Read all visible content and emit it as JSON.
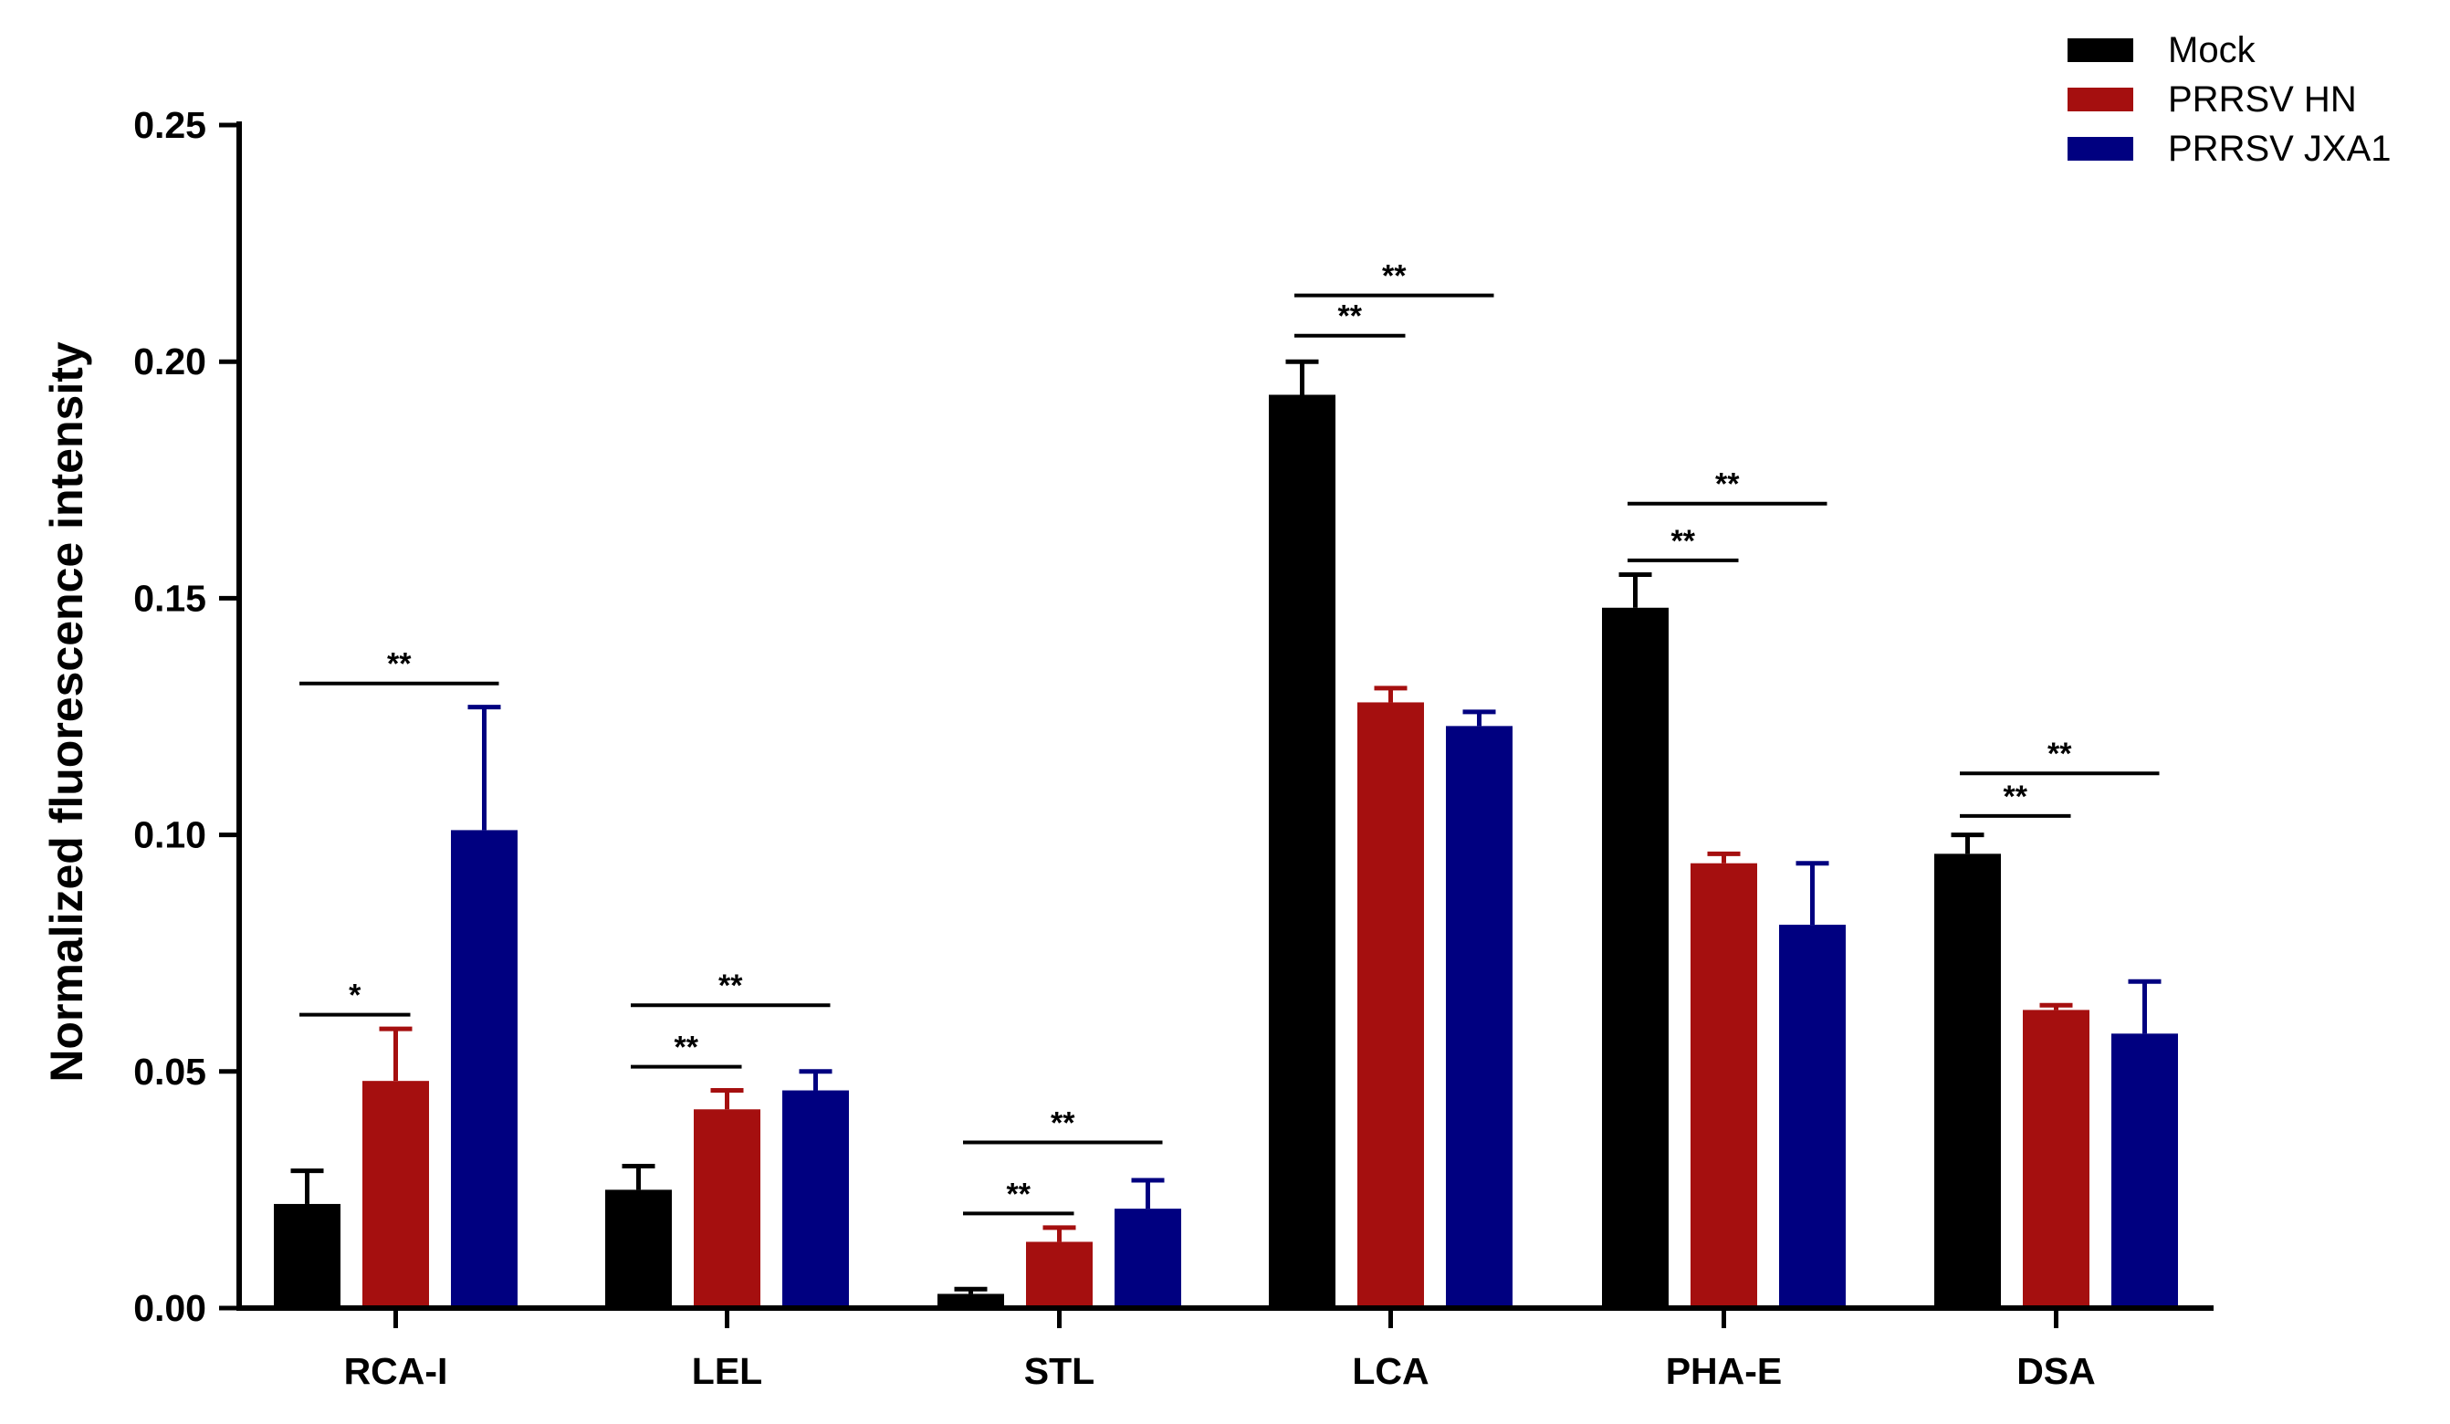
{
  "chart_data": {
    "type": "bar",
    "title": "",
    "xlabel": "",
    "ylabel": "Normalized fluorescence intensity",
    "ylim": [
      0,
      0.25
    ],
    "yticks": [
      "0.00",
      "0.05",
      "0.10",
      "0.15",
      "0.20",
      "0.25"
    ],
    "ytick_values": [
      0,
      0.05,
      0.1,
      0.15,
      0.2,
      0.25
    ],
    "grid": false,
    "legend_position": "top-right",
    "categories": [
      "RCA-I",
      "LEL",
      "STL",
      "LCA",
      "PHA-E",
      "DSA"
    ],
    "series": [
      {
        "name": "Mock",
        "color": "#000000",
        "values": [
          0.022,
          0.025,
          0.003,
          0.193,
          0.148,
          0.096
        ],
        "errors": [
          0.007,
          0.005,
          0.001,
          0.007,
          0.007,
          0.004
        ]
      },
      {
        "name": "PRRSV HN",
        "color": "#a50f0f",
        "values": [
          0.048,
          0.042,
          0.014,
          0.128,
          0.094,
          0.063
        ],
        "errors": [
          0.011,
          0.004,
          0.003,
          0.003,
          0.002,
          0.001
        ]
      },
      {
        "name": "PRRSV JXA1",
        "color": "#000080",
        "values": [
          0.101,
          0.046,
          0.021,
          0.123,
          0.081,
          0.058
        ],
        "errors": [
          0.026,
          0.004,
          0.006,
          0.003,
          0.013,
          0.011
        ]
      }
    ],
    "significance": [
      {
        "category": 0,
        "from": 0,
        "to": 1,
        "label": "*",
        "y": 0.062
      },
      {
        "category": 0,
        "from": 0,
        "to": 2,
        "label": "**",
        "y": 0.132
      },
      {
        "category": 1,
        "from": 0,
        "to": 1,
        "label": "**",
        "y": 0.051
      },
      {
        "category": 1,
        "from": 0,
        "to": 2,
        "label": "**",
        "y": 0.064
      },
      {
        "category": 2,
        "from": 0,
        "to": 1,
        "label": "**",
        "y": 0.02
      },
      {
        "category": 2,
        "from": 0,
        "to": 2,
        "label": "**",
        "y": 0.035
      },
      {
        "category": 3,
        "from": 0,
        "to": 1,
        "label": "**",
        "y": 0.2055
      },
      {
        "category": 3,
        "from": 0,
        "to": 2,
        "label": "**",
        "y": 0.214
      },
      {
        "category": 4,
        "from": 0,
        "to": 1,
        "label": "**",
        "y": 0.158
      },
      {
        "category": 4,
        "from": 0,
        "to": 2,
        "label": "**",
        "y": 0.17
      },
      {
        "category": 5,
        "from": 0,
        "to": 1,
        "label": "**",
        "y": 0.104
      },
      {
        "category": 5,
        "from": 0,
        "to": 2,
        "label": "**",
        "y": 0.113
      }
    ]
  }
}
